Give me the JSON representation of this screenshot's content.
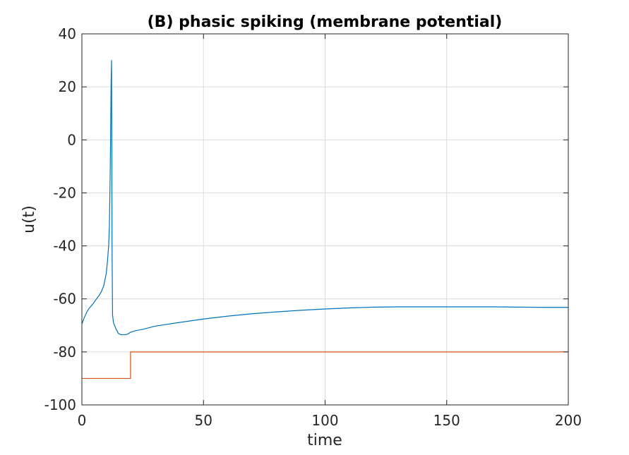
{
  "chart_data": {
    "type": "line",
    "title": "(B) phasic spiking (membrane potential)",
    "xlabel": "time",
    "ylabel": "u(t)",
    "xlim": [
      0,
      200
    ],
    "ylim": [
      -100,
      40
    ],
    "grid": true,
    "xticks": [
      "0",
      "50",
      "100",
      "150",
      "200"
    ],
    "yticks": [
      "40",
      "20",
      "0",
      "-20",
      "-40",
      "-60",
      "-80",
      "-100"
    ],
    "colors": {
      "membrane": "#0072BD",
      "input": "#D95319"
    },
    "series": [
      {
        "x": [
          0,
          1,
          2,
          3,
          4,
          5,
          6,
          7,
          8,
          9,
          10,
          10.5,
          11,
          11.3,
          11.6,
          11.8,
          12,
          12.2,
          12.4,
          12.6,
          13,
          14,
          15,
          16,
          17,
          18,
          19,
          20,
          22,
          25,
          30,
          40,
          50,
          60,
          70,
          80,
          90,
          100,
          110,
          120,
          130,
          140,
          150,
          160,
          170,
          180,
          190,
          200
        ],
        "y": [
          -69.5,
          -67,
          -65,
          -63.5,
          -62.5,
          -61.3,
          -60,
          -58.8,
          -57.3,
          -55,
          -50.5,
          -46,
          -40,
          -33,
          -15,
          0,
          21,
          30,
          -40,
          -66,
          -69,
          -71.3,
          -73,
          -73.5,
          -73.5,
          -73.5,
          -73.2,
          -72.6,
          -72,
          -71.5,
          -70.3,
          -68.9,
          -67.6,
          -66.5,
          -65.6,
          -64.9,
          -64.3,
          -63.8,
          -63.4,
          -63.1,
          -63,
          -63,
          -63,
          -63,
          -63,
          -63.1,
          -63.2,
          -63.2
        ]
      },
      {
        "x": [
          0,
          20,
          20,
          200
        ],
        "y": [
          -90,
          -90,
          -80,
          -80
        ]
      }
    ]
  }
}
